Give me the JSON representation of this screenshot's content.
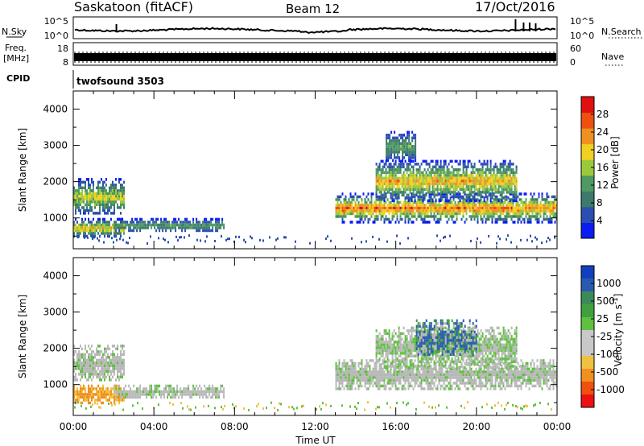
{
  "header": {
    "title": "Saskatoon (fitACF)",
    "beam": "Beam 12",
    "date": "17/Oct/2016"
  },
  "top_strips": {
    "nsky_label": "N.Sky",
    "nsky_ticks": [
      "10^5",
      "10^0"
    ],
    "nsearch_label": "N.Search",
    "freq_label_1": "Freq.",
    "freq_label_2": "[MHz]",
    "freq_ticks": [
      "18",
      "8"
    ],
    "nave_ticks": [
      "60",
      "0"
    ],
    "nave_label": "Nave",
    "cpid_label": "CPID",
    "cpid_value": "twofsound 3503"
  },
  "colors": {
    "power_scale": [
      "#0a1cf0",
      "#2a4fb0",
      "#3c7a6a",
      "#4e9a62",
      "#9bc93c",
      "#f0d020",
      "#f09020",
      "#ee5010",
      "#e01010"
    ],
    "velocity_scale": [
      "#ee1010",
      "#f05010",
      "#f09020",
      "#f0c040",
      "#c8c8c8",
      "#c8c8c8",
      "#60c040",
      "#40a040",
      "#3a8a5a",
      "#2a5ab0",
      "#1040c0"
    ],
    "ground_scatter": "#b8b8b8"
  },
  "chart_data": [
    {
      "type": "heatmap",
      "panel": "power",
      "ylabel": "Slant Range [km]",
      "xlabel": "",
      "xlim": [
        "00:00",
        "00:00"
      ],
      "ylim": [
        150,
        4500
      ],
      "x_ticks": [
        "00:00",
        "04:00",
        "08:00",
        "12:00",
        "16:00",
        "20:00",
        "00:00"
      ],
      "y_ticks": [
        1000,
        2000,
        3000,
        4000
      ],
      "colorbar": {
        "label": "Power [dB]",
        "ticks": [
          4,
          8,
          12,
          16,
          20,
          24,
          28
        ],
        "range": [
          0,
          32
        ]
      },
      "echo_regions": [
        {
          "t_start": 0.0,
          "t_end": 2.5,
          "r_low": 1100,
          "r_high": 2100,
          "peak": 22
        },
        {
          "t_start": 0.0,
          "t_end": 2.5,
          "r_low": 500,
          "r_high": 1000,
          "peak": 28
        },
        {
          "t_start": 2.0,
          "t_end": 7.5,
          "r_low": 650,
          "r_high": 1000,
          "peak": 16
        },
        {
          "t_start": 13.0,
          "t_end": 24.0,
          "r_low": 900,
          "r_high": 1700,
          "peak": 30
        },
        {
          "t_start": 15.0,
          "t_end": 22.0,
          "r_low": 1500,
          "r_high": 2600,
          "peak": 28
        },
        {
          "t_start": 15.5,
          "t_end": 17.0,
          "r_low": 2600,
          "r_high": 3400,
          "peak": 16
        }
      ]
    },
    {
      "type": "heatmap",
      "panel": "velocity",
      "ylabel": "Slant Range [km]",
      "xlabel": "Time UT",
      "xlim": [
        "00:00",
        "00:00"
      ],
      "ylim": [
        150,
        4500
      ],
      "x_ticks": [
        "00:00",
        "04:00",
        "08:00",
        "12:00",
        "16:00",
        "20:00",
        "00:00"
      ],
      "y_ticks": [
        1000,
        2000,
        3000,
        4000
      ],
      "colorbar": {
        "label": "Velocity [m s^-1]",
        "ticks": [
          1000,
          500,
          25,
          -25,
          -100,
          -500,
          -1000
        ]
      },
      "echo_regions": [
        {
          "t_start": 0.0,
          "t_end": 2.5,
          "r_low": 1100,
          "r_high": 2100,
          "velocity": 0
        },
        {
          "t_start": 0.0,
          "t_end": 2.5,
          "r_low": 500,
          "r_high": 1000,
          "velocity": -100
        },
        {
          "t_start": 2.0,
          "t_end": 7.5,
          "r_low": 650,
          "r_high": 1000,
          "velocity": 0
        },
        {
          "t_start": 13.0,
          "t_end": 24.0,
          "r_low": 900,
          "r_high": 1700,
          "velocity": 0
        },
        {
          "t_start": 15.0,
          "t_end": 22.0,
          "r_low": 1500,
          "r_high": 2600,
          "velocity": 25
        },
        {
          "t_start": 17.0,
          "t_end": 20.0,
          "r_low": 1800,
          "r_high": 2800,
          "velocity": 500
        }
      ]
    }
  ]
}
